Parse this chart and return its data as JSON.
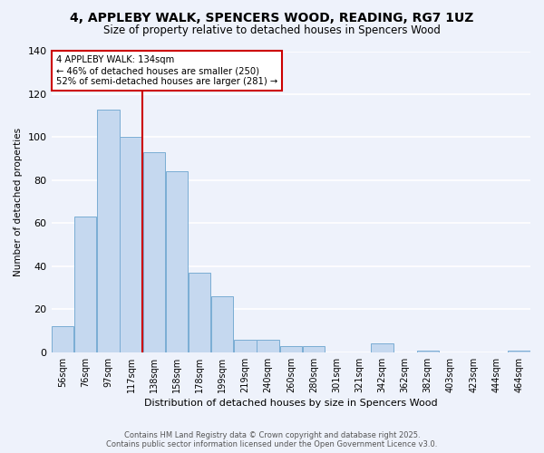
{
  "title": "4, APPLEBY WALK, SPENCERS WOOD, READING, RG7 1UZ",
  "subtitle": "Size of property relative to detached houses in Spencers Wood",
  "xlabel": "Distribution of detached houses by size in Spencers Wood",
  "ylabel": "Number of detached properties",
  "bar_color": "#c5d8ef",
  "bar_edge_color": "#7aadd4",
  "background_color": "#eef2fb",
  "grid_color": "#ffffff",
  "categories": [
    "56sqm",
    "76sqm",
    "97sqm",
    "117sqm",
    "138sqm",
    "158sqm",
    "178sqm",
    "199sqm",
    "219sqm",
    "240sqm",
    "260sqm",
    "280sqm",
    "301sqm",
    "321sqm",
    "342sqm",
    "362sqm",
    "382sqm",
    "403sqm",
    "423sqm",
    "444sqm",
    "464sqm"
  ],
  "values": [
    12,
    63,
    113,
    100,
    93,
    84,
    37,
    26,
    6,
    6,
    3,
    3,
    0,
    0,
    4,
    0,
    1,
    0,
    0,
    0,
    1
  ],
  "ylim": [
    0,
    140
  ],
  "yticks": [
    0,
    20,
    40,
    60,
    80,
    100,
    120,
    140
  ],
  "vline_x": 3.5,
  "vline_color": "#cc0000",
  "annotation_line1": "4 APPLEBY WALK: 134sqm",
  "annotation_line2": "← 46% of detached houses are smaller (250)",
  "annotation_line3": "52% of semi-detached houses are larger (281) →",
  "annotation_box_color": "#ffffff",
  "annotation_box_edge": "#cc0000",
  "footer_line1": "Contains HM Land Registry data © Crown copyright and database right 2025.",
  "footer_line2": "Contains public sector information licensed under the Open Government Licence v3.0."
}
